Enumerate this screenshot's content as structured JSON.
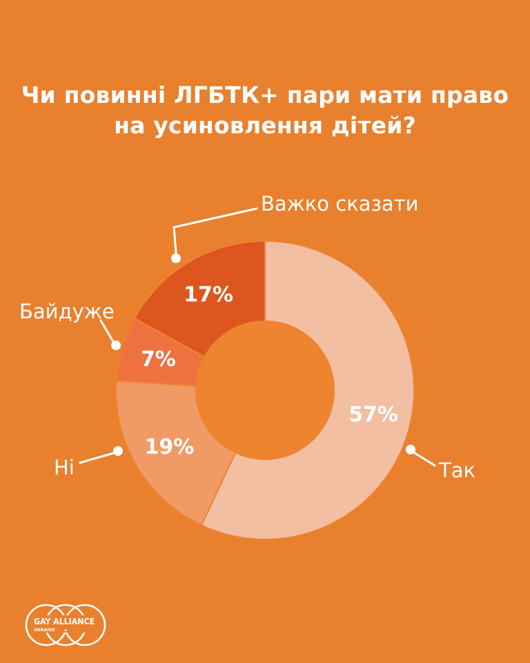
{
  "title": {
    "line1": "Чи повинні ЛГБТК+ пари мати право",
    "line2": "на усиновлення дітей?"
  },
  "chart_data": {
    "type": "pie",
    "subtype": "donut",
    "title": "Чи повинні ЛГБТК+ пари мати право на усиновлення дітей?",
    "categories": [
      "Так",
      "Ні",
      "Байдуже",
      "Важко сказати"
    ],
    "values": [
      57,
      19,
      7,
      17
    ],
    "unit": "%",
    "colors": [
      "#F3BFA3",
      "#F09A66",
      "#ED7240",
      "#DD5620"
    ],
    "start_angle_deg": 0,
    "direction": "clockwise",
    "donut_hole_ratio": 0.465,
    "background_color": "#E8802E",
    "hole_color": "#EE8430",
    "slice_gap_color": "#EE8430",
    "value_label_color": "#FFFFFF",
    "callout_label_color": "#FFFFFF",
    "legend_position": "callout-labels"
  },
  "logo": {
    "name_line": "GAY ALLIANCE",
    "country_line": "UKRAINE"
  }
}
